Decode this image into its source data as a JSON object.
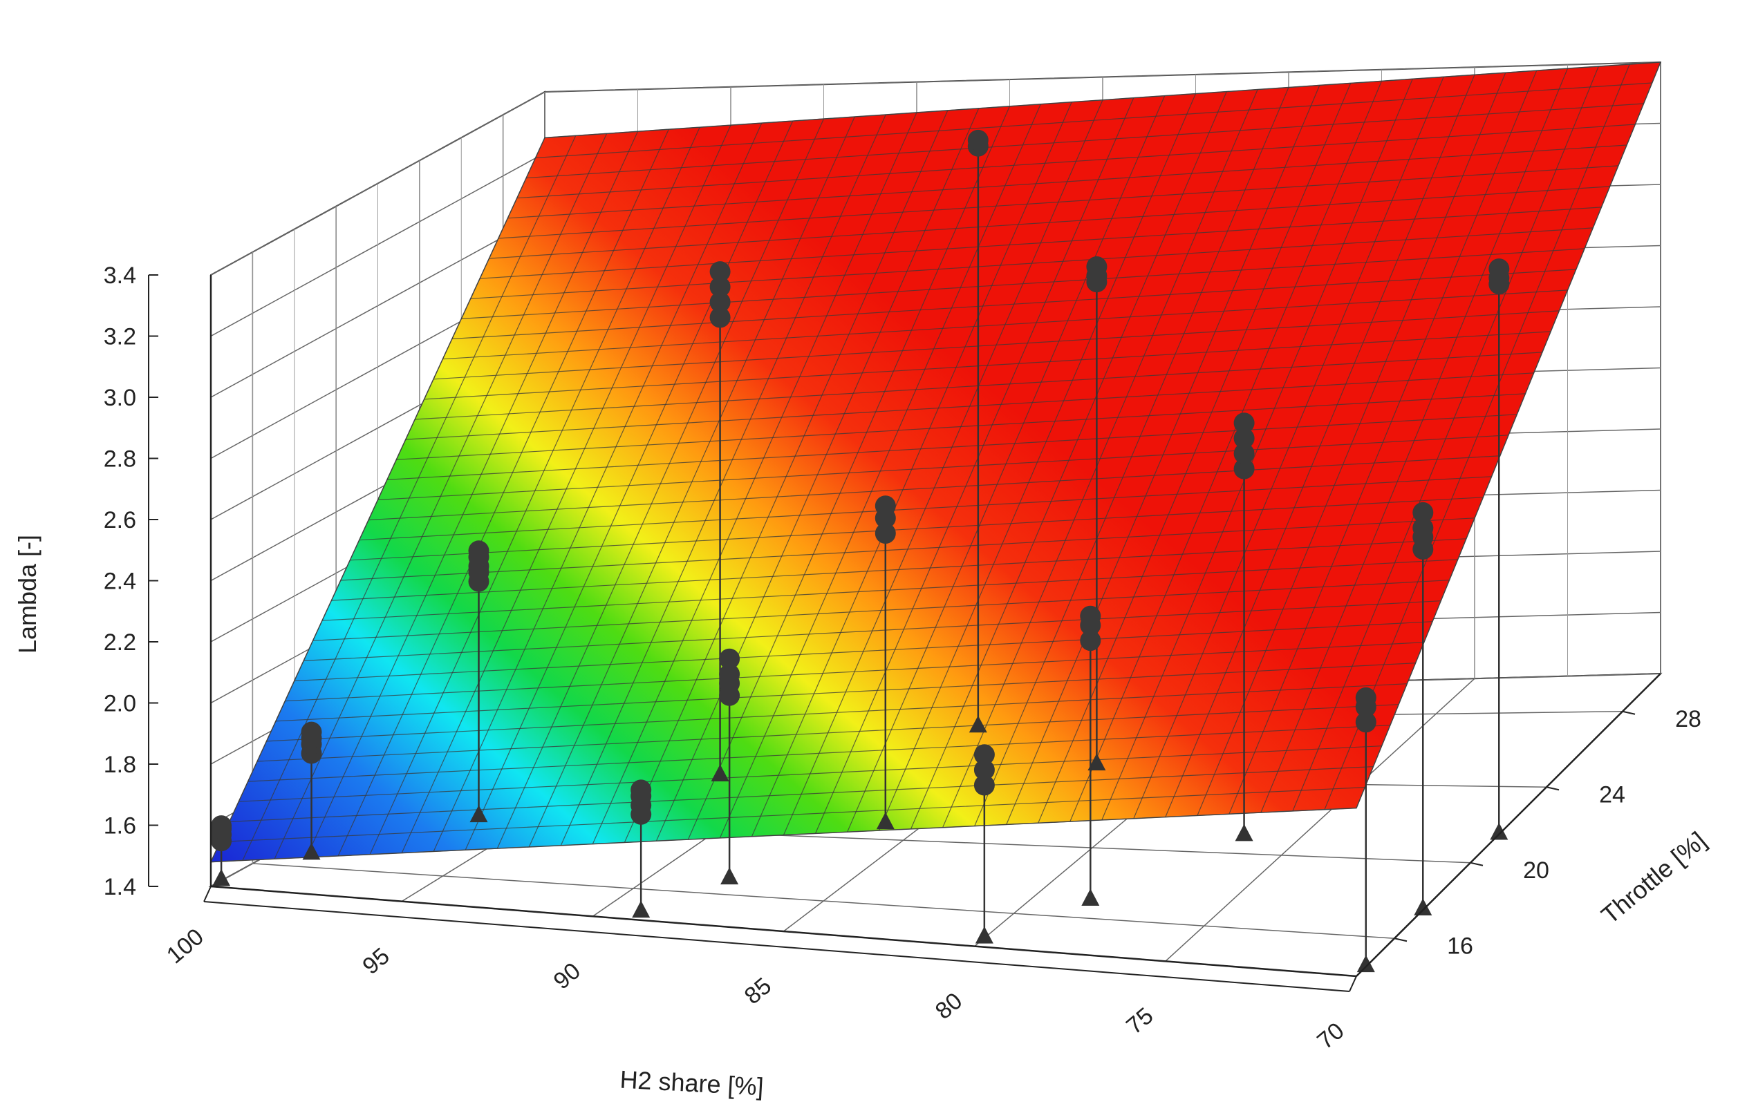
{
  "chart_data": {
    "type": "surface3d",
    "title": "",
    "x_axis": {
      "label": "H2 share [%]",
      "range": [
        70,
        100
      ],
      "ticks": [
        "100",
        "95",
        "90",
        "85",
        "80",
        "75",
        "70"
      ]
    },
    "y_axis": {
      "label": "Throttle [%]",
      "range": [
        14,
        30
      ],
      "ticks": [
        "16",
        "20",
        "24",
        "28"
      ]
    },
    "z_axis": {
      "label": "Lambda [-]",
      "range": [
        1.4,
        3.4
      ],
      "ticks": [
        "1.4",
        "1.6",
        "1.8",
        "2.0",
        "2.2",
        "2.4",
        "2.6",
        "2.8",
        "3.0",
        "3.2",
        "3.4"
      ]
    },
    "surface": {
      "description": "fitted response surface",
      "corner_values": {
        "h100_t14": 1.48,
        "h70_t14": 1.95,
        "h100_t30": 3.25,
        "h70_t30": 3.4
      }
    },
    "points": [
      {
        "h2": 100,
        "throttle": 14.5,
        "lambda": [
          1.53,
          1.55,
          1.57,
          1.58
        ]
      },
      {
        "h2": 99,
        "throttle": 17,
        "lambda": [
          1.73,
          1.76,
          1.78,
          1.8
        ]
      },
      {
        "h2": 96.5,
        "throttle": 20.5,
        "lambda": [
          2.17,
          2.2,
          2.22,
          2.25,
          2.27
        ]
      },
      {
        "h2": 92,
        "throttle": 24,
        "lambda": [
          2.9,
          2.95,
          3.0,
          3.05
        ]
      },
      {
        "h2": 87,
        "throttle": 27.5,
        "lambda": [
          3.3,
          3.32
        ]
      },
      {
        "h2": 89,
        "throttle": 14.5,
        "lambda": [
          1.72,
          1.75,
          1.78,
          1.8
        ]
      },
      {
        "h2": 88,
        "throttle": 17,
        "lambda": [
          2.0,
          2.04,
          2.07,
          2.12
        ]
      },
      {
        "h2": 86,
        "throttle": 21,
        "lambda": [
          2.35,
          2.4,
          2.44
        ]
      },
      {
        "h2": 82.5,
        "throttle": 25,
        "lambda": [
          2.98,
          3.0,
          3.03
        ]
      },
      {
        "h2": 80,
        "throttle": 14.5,
        "lambda": [
          1.9,
          1.95,
          2.0
        ]
      },
      {
        "h2": 78.5,
        "throttle": 17,
        "lambda": [
          2.25,
          2.3,
          2.33
        ]
      },
      {
        "h2": 76.5,
        "throttle": 21,
        "lambda": [
          2.6,
          2.65,
          2.7,
          2.75
        ]
      },
      {
        "h2": 70,
        "throttle": 14.5,
        "lambda": [
          2.2,
          2.25,
          2.28
        ]
      },
      {
        "h2": 70,
        "throttle": 17.5,
        "lambda": [
          2.58,
          2.62,
          2.65,
          2.7
        ]
      },
      {
        "h2": 70,
        "throttle": 21.5,
        "lambda": [
          3.2,
          3.22,
          3.25
        ]
      }
    ]
  }
}
